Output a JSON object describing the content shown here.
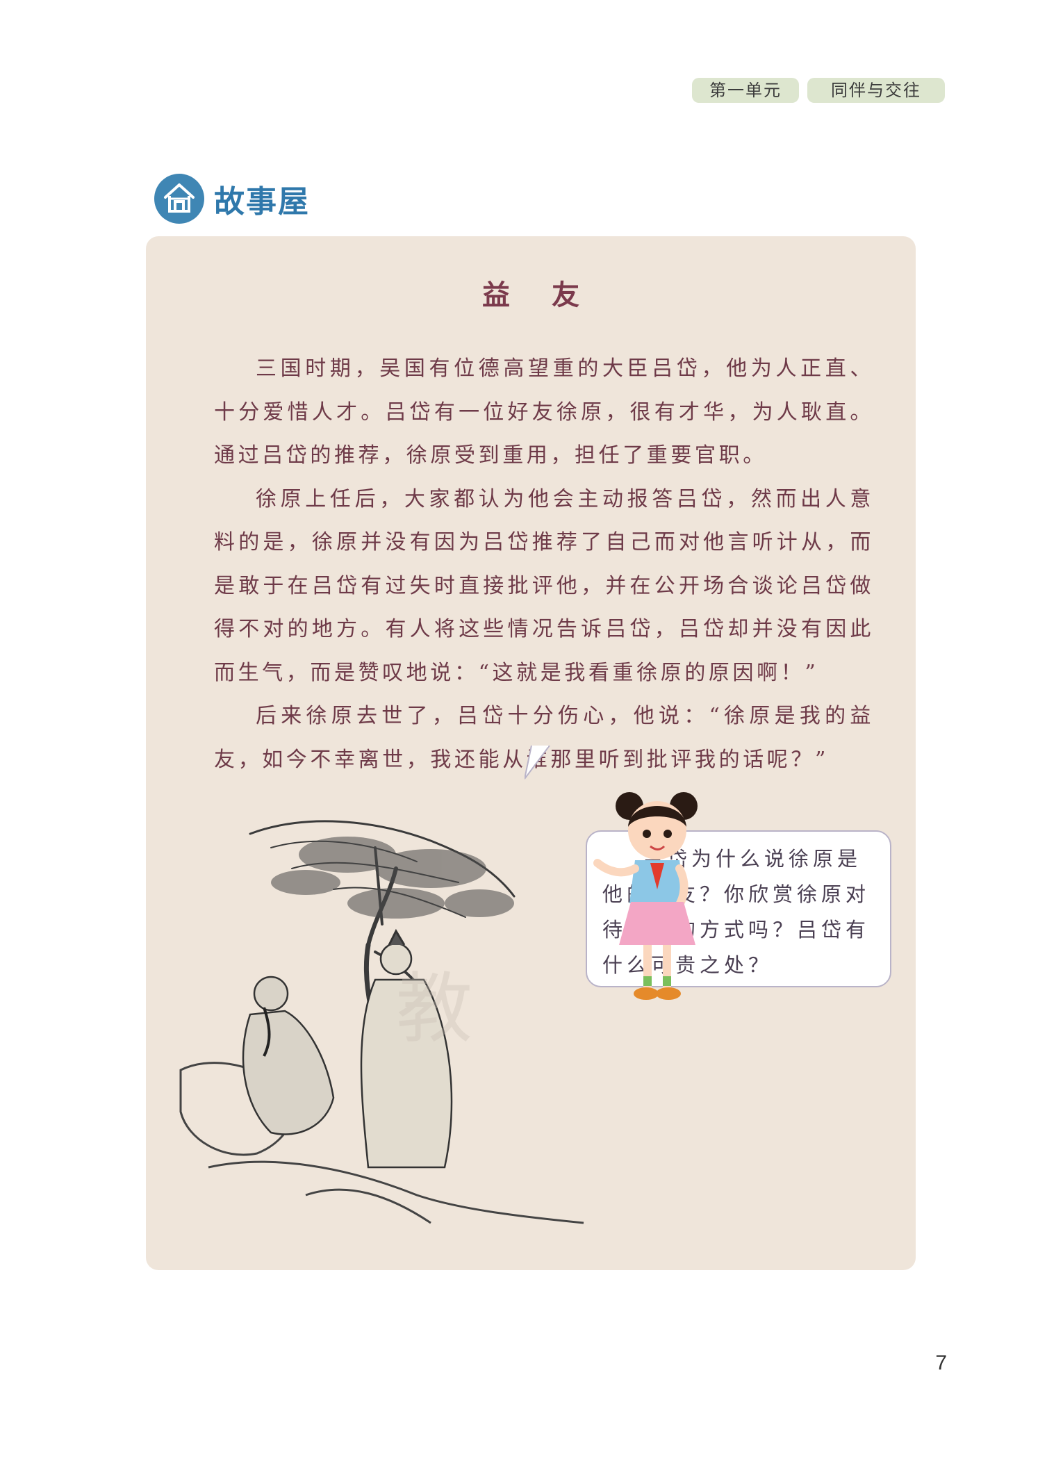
{
  "header": {
    "unit_label": "第一单元",
    "topic_label": "同伴与交往"
  },
  "section": {
    "title": "故事屋",
    "icon": "house-icon"
  },
  "story": {
    "title": "益友",
    "paragraphs": [
      "三国时期，吴国有位德高望重的大臣吕岱，他为人正直、十分爱惜人才。吕岱有一位好友徐原，很有才华，为人耿直。通过吕岱的推荐，徐原受到重用，担任了重要官职。",
      "徐原上任后，大家都认为他会主动报答吕岱，然而出人意料的是，徐原并没有因为吕岱推荐了自己而对他言听计从，而是敢于在吕岱有过失时直接批评他，并在公开场合谈论吕岱做得不对的地方。有人将这些情况告诉吕岱，吕岱却并没有因此而生气，而是赞叹地说：“这就是我看重徐原的原因啊！”",
      "后来徐原去世了，吕岱十分伤心，他说：“徐原是我的益友，如今不幸离世，我还能从谁那里听到批评我的话呢？”"
    ]
  },
  "question_bubble": {
    "text": "吕岱为什么说徐原是他的益友？你欣赏徐原对待朋友的方式吗？吕岱有什么可贵之处？"
  },
  "page_number": "7",
  "colors": {
    "tag_bg": "#dde6cf",
    "section_blue": "#3f86b4",
    "box_bg": "#efe5da",
    "story_text": "#6e3a48"
  }
}
